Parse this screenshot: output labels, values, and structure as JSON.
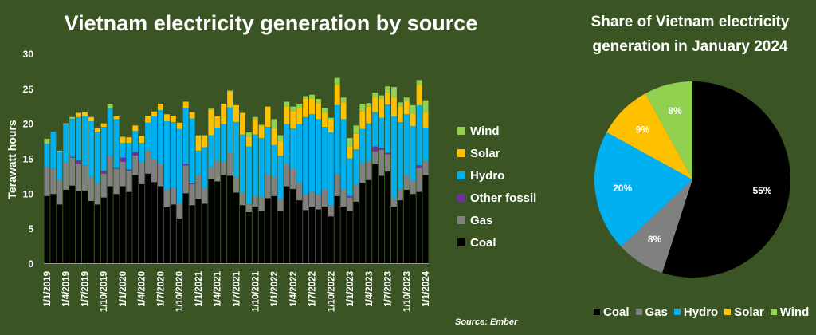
{
  "chart_data": [
    {
      "type": "bar",
      "stacked": true,
      "title": "Vietnam electricity generation by source",
      "xlabel": "",
      "ylabel": "Terawatt hours",
      "ylim": [
        0,
        30
      ],
      "yticks": [
        "0",
        "5",
        "10",
        "15",
        "20",
        "25",
        "30"
      ],
      "xtick_labels": [
        "1/1/2019",
        "1/4/2019",
        "1/7/2019",
        "1/10/2019",
        "1/1/2020",
        "1/4/2020",
        "1/7/2020",
        "1/10/2020",
        "1/1/2021",
        "1/4/2021",
        "1/7/2021",
        "1/10/2021",
        "1/1/2022",
        "1/4/2022",
        "1/7/2022",
        "1/10/2022",
        "1/1/2023",
        "1/4/2023",
        "1/7/2023",
        "1/10/2023",
        "1/1/2024"
      ],
      "x_range": "monthly, Jan 2019 - Jan 2024",
      "legend_position": "right",
      "series": [
        {
          "name": "Coal",
          "color": "#000000",
          "values": [
            9.6,
            9.9,
            8.4,
            10.5,
            11.1,
            10.3,
            10.4,
            8.9,
            8.4,
            9.4,
            11.0,
            9.9,
            11.0,
            10.2,
            12.6,
            11.3,
            12.8,
            11.6,
            11.0,
            8.0,
            8.4,
            6.4,
            10.0,
            8.3,
            9.2,
            8.5,
            12.0,
            11.7,
            12.6,
            12.5,
            10.1,
            8.3,
            7.3,
            8.1,
            7.5,
            9.3,
            9.6,
            7.5,
            11.0,
            10.6,
            9.0,
            7.6,
            8.1,
            7.7,
            8.1,
            6.7,
            9.6,
            8.1,
            7.5,
            8.8,
            11.5,
            11.9,
            14.2,
            12.5,
            13.1,
            8.1,
            9.0,
            10.5,
            9.9,
            10.2,
            12.6
          ]
        },
        {
          "name": "Gas",
          "color": "#808080",
          "values": [
            4.1,
            3.6,
            3.5,
            3.9,
            4.0,
            3.9,
            3.6,
            3.4,
            3.0,
            3.4,
            4.3,
            3.6,
            3.5,
            3.0,
            2.8,
            3.2,
            3.3,
            3.3,
            3.2,
            2.5,
            2.4,
            2.2,
            4.0,
            3.0,
            3.4,
            2.2,
            1.8,
            3.0,
            1.8,
            3.3,
            2.2,
            1.8,
            1.2,
            1.5,
            1.9,
            3.4,
            2.7,
            1.7,
            3.2,
            2.9,
            2.5,
            2.3,
            2.1,
            2.2,
            2.4,
            1.6,
            3.1,
            2.5,
            1.9,
            2.4,
            2.8,
            2.7,
            1.8,
            3.7,
            2.5,
            1.2,
            1.6,
            2.0,
            1.9,
            3.4,
            2.0
          ]
        },
        {
          "name": "Other fossil",
          "color": "#7030a0",
          "values": [
            0,
            0,
            0,
            0,
            0.1,
            0.5,
            0,
            0,
            0,
            0.4,
            0,
            0.1,
            0.6,
            0.2,
            0.5,
            0,
            0,
            0,
            0,
            0,
            0,
            0,
            0.2,
            0.1,
            0,
            0,
            0,
            0,
            0,
            0,
            0,
            0,
            0,
            0,
            0,
            0,
            0,
            0,
            0,
            0,
            0,
            0,
            0,
            0,
            0,
            0,
            0,
            0,
            0.2,
            0,
            0,
            0,
            0.7,
            0.3,
            0.2,
            0,
            0,
            0,
            0,
            0.4,
            0
          ]
        },
        {
          "name": "Hydro",
          "color": "#00b0f0",
          "values": [
            3.4,
            5.3,
            4.1,
            5.5,
            5.5,
            6.2,
            7.0,
            8.0,
            7.3,
            6.3,
            6.8,
            7.0,
            2.1,
            3.8,
            3.0,
            2.7,
            4.0,
            6.1,
            7.7,
            9.8,
            9.4,
            10.6,
            8.0,
            9.3,
            3.5,
            5.9,
            4.5,
            4.7,
            5.5,
            6.5,
            7.9,
            8.3,
            8.2,
            8.8,
            8.5,
            6.8,
            4.6,
            6.2,
            5.7,
            5.8,
            8.4,
            11.0,
            11.1,
            10.7,
            9.0,
            10.4,
            9.9,
            10.0,
            5.4,
            5.1,
            4.9,
            5.4,
            4.9,
            4.3,
            6.9,
            11.7,
            9.6,
            8.8,
            7.8,
            8.6,
            4.8
          ]
        },
        {
          "name": "Solar",
          "color": "#ffc000",
          "values": [
            0,
            0,
            0.1,
            0.1,
            0.2,
            0.6,
            0.6,
            0.6,
            0.6,
            0.5,
            0,
            0.4,
            0.8,
            0.8,
            0.8,
            1.0,
            1.0,
            0.7,
            0.9,
            1.0,
            0.9,
            0.9,
            0.9,
            0.9,
            2.1,
            1.6,
            3.6,
            1.6,
            2.9,
            2.3,
            2.4,
            3.1,
            1.4,
            2.2,
            1.8,
            2.9,
            2.4,
            2.1,
            2.5,
            2.4,
            2.3,
            2.6,
            2.3,
            2.3,
            2.0,
            1.8,
            2.9,
            2.4,
            1.7,
            2.2,
            2.5,
            2.4,
            2.2,
            2.7,
            1.8,
            2.8,
            2.2,
            1.9,
            1.8,
            2.9,
            2.1
          ]
        },
        {
          "name": "Wind",
          "color": "#92d050",
          "values": [
            0.7,
            0,
            0,
            0,
            0,
            0,
            0,
            0,
            0,
            0,
            0.7,
            0,
            0.1,
            0,
            0,
            0,
            0,
            0,
            0,
            0,
            0,
            0,
            0,
            0,
            0.1,
            0.1,
            0.2,
            0,
            0,
            0.1,
            0,
            0,
            0.6,
            0.3,
            0.1,
            0,
            1.3,
            0.8,
            0.7,
            0.7,
            0.6,
            0.4,
            0.5,
            0.6,
            0.7,
            0.3,
            1.0,
            0.7,
            1.2,
            1.2,
            1.1,
            0.5,
            0.6,
            0.5,
            0.8,
            1.4,
            0.6,
            0.5,
            1.2,
            0.7,
            1.8
          ]
        }
      ],
      "legend": [
        "Wind",
        "Solar",
        "Hydro",
        "Other fossil",
        "Gas",
        "Coal"
      ]
    },
    {
      "type": "pie",
      "title_lines": [
        "Share of Vietnam electricity",
        "generation in January 2024"
      ],
      "labels": [
        "Coal",
        "Gas",
        "Hydro",
        "Solar",
        "Wind"
      ],
      "values": [
        55,
        8,
        20,
        9,
        8
      ],
      "data_labels": [
        "55%",
        "8%",
        "20%",
        "9%",
        "8%"
      ],
      "colors": [
        "#000000",
        "#808080",
        "#00b0f0",
        "#ffc000",
        "#92d050"
      ],
      "legend_position": "bottom"
    }
  ],
  "source": "Source: Ember"
}
